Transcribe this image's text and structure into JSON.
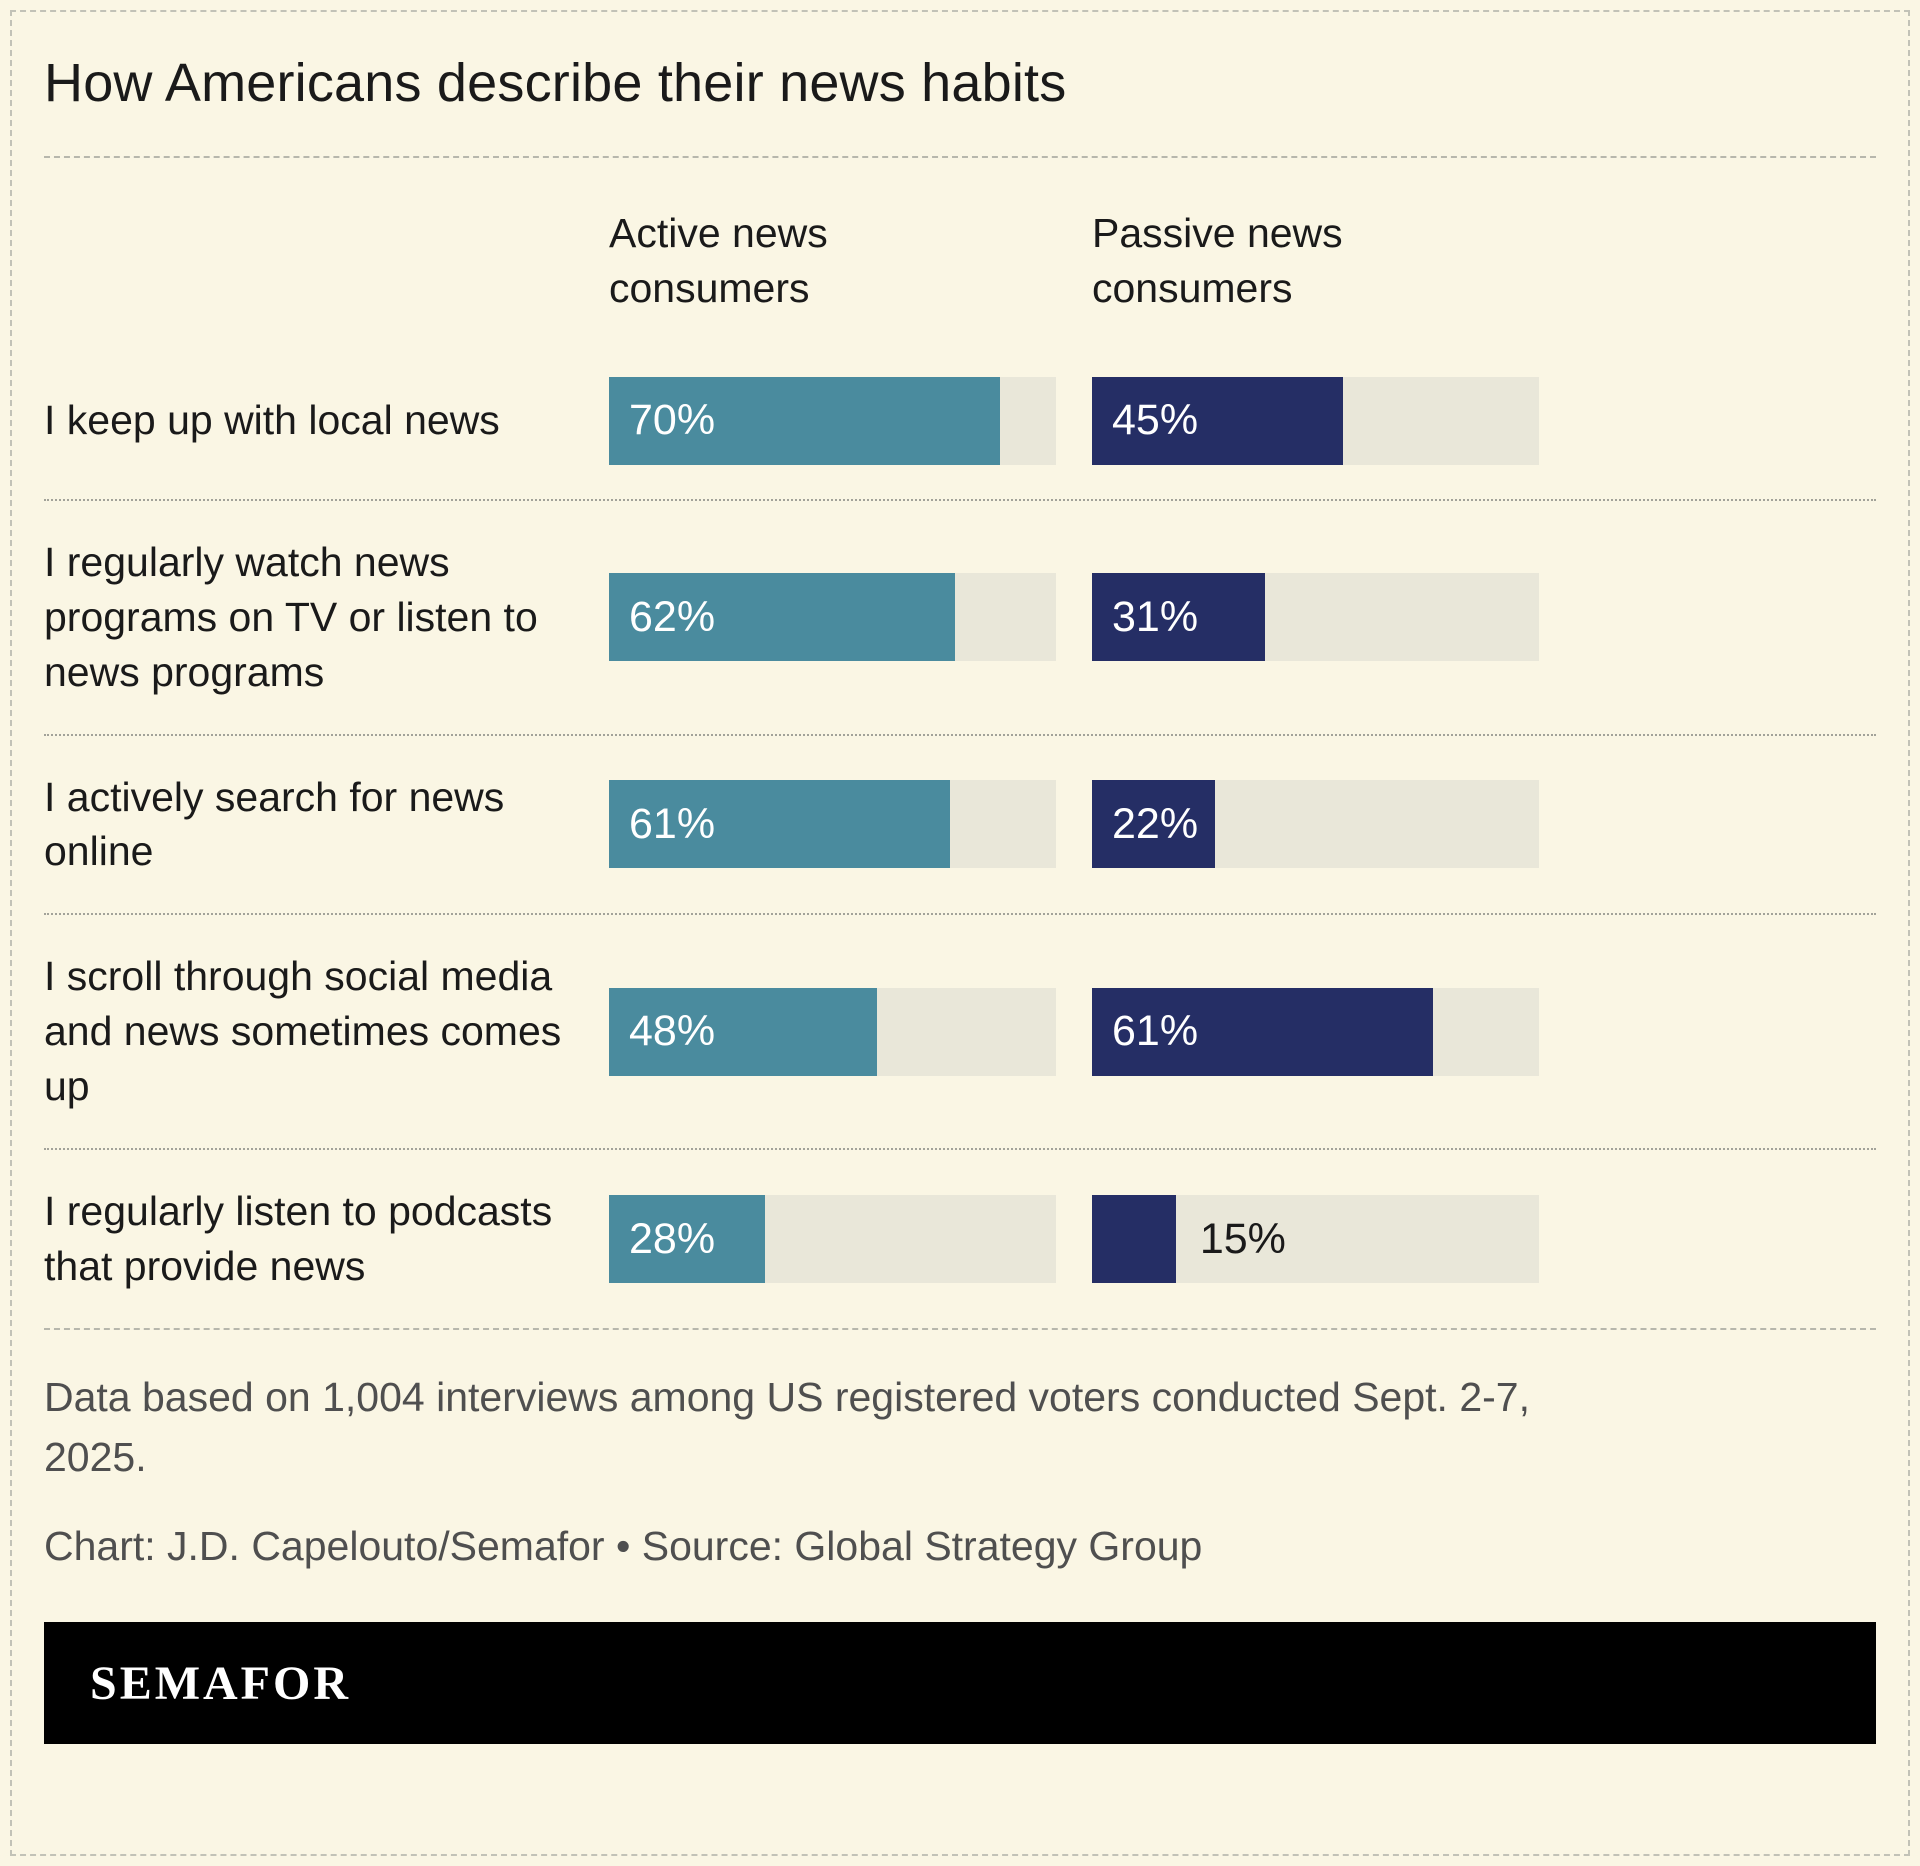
{
  "title": "How Americans describe their news habits",
  "chart_data": {
    "type": "bar",
    "orientation": "horizontal",
    "title": "How Americans describe their news habits",
    "categories": [
      "I keep up with local news",
      "I regularly watch news programs on TV or listen to news programs",
      "I actively search for news online",
      "I scroll through social media and news sometimes comes up",
      "I regularly listen to podcasts that provide news"
    ],
    "series": [
      {
        "name": "Active news consumers",
        "color": "#4a8b9e",
        "values": [
          70,
          62,
          61,
          48,
          28
        ]
      },
      {
        "name": "Passive news consumers",
        "color": "#252e65",
        "values": [
          45,
          31,
          22,
          61,
          15
        ]
      }
    ],
    "value_suffix": "%",
    "xlim": [
      0,
      80
    ],
    "grid": false,
    "legend_position": "column-headers-top",
    "track_color": "#e9e7d9",
    "label_inside_min": 20
  },
  "notes": {
    "line1": "Data based on 1,004 interviews among US registered voters conducted Sept. 2-7, 2025.",
    "line2": "Chart: J.D. Capelouto/Semafor • Source: Global Strategy Group"
  },
  "footer": {
    "logo": "SEMAFOR"
  }
}
